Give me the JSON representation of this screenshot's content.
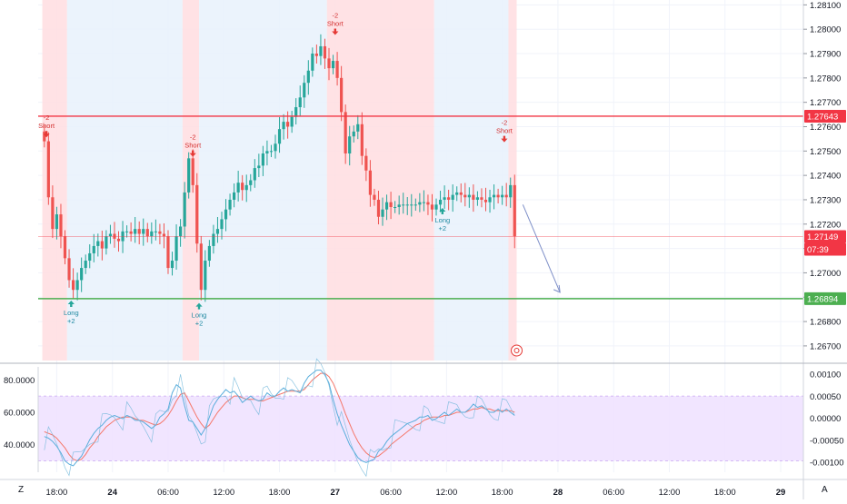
{
  "chart_data": {
    "type": "candlestick",
    "main": {
      "ylim": [
        1.2664,
        1.2812
      ],
      "y_ticks": [
        "1.26700",
        "1.26800",
        "1.26900",
        "1.27000",
        "1.27100",
        "1.27200",
        "1.27300",
        "1.27400",
        "1.27500",
        "1.27600",
        "1.27700",
        "1.27800",
        "1.27900",
        "1.28000",
        "1.28100"
      ],
      "price_lines": [
        {
          "value": 1.27643,
          "label": "1.27643",
          "color": "#f23645"
        },
        {
          "value": 1.26894,
          "label": "1.26894",
          "color": "#4caf50"
        }
      ],
      "last_price": {
        "value": 1.27149,
        "label": "1.27149",
        "countdown": "07:39",
        "color": "#f23645"
      },
      "sessions": [
        {
          "from": 0,
          "to": 6,
          "kind": "short"
        },
        {
          "from": 6,
          "to": 34,
          "kind": "long"
        },
        {
          "from": 34,
          "to": 38,
          "kind": "short"
        },
        {
          "from": 38,
          "to": 69,
          "kind": "long"
        },
        {
          "from": 69,
          "to": 95,
          "kind": "short"
        },
        {
          "from": 95,
          "to": 113,
          "kind": "long"
        },
        {
          "from": 113,
          "to": 115,
          "kind": "short"
        }
      ],
      "signals": [
        {
          "x": 0.5,
          "y": 1.2756,
          "side": "short",
          "lines": [
            "-2",
            "Short"
          ]
        },
        {
          "x": 6.5,
          "y": 1.2689,
          "side": "long",
          "lines": [
            "Long",
            "+2"
          ]
        },
        {
          "x": 36.0,
          "y": 1.2748,
          "side": "short",
          "lines": [
            "-2",
            "Short"
          ]
        },
        {
          "x": 37.5,
          "y": 1.2688,
          "side": "long",
          "lines": [
            "Long",
            "+2"
          ]
        },
        {
          "x": 70.5,
          "y": 1.2798,
          "side": "short",
          "lines": [
            "-2",
            "Short"
          ]
        },
        {
          "x": 96.5,
          "y": 1.2727,
          "side": "long",
          "lines": [
            "Long",
            "+2"
          ]
        },
        {
          "x": 111.5,
          "y": 1.2754,
          "side": "short",
          "lines": [
            "-2",
            "Short"
          ]
        }
      ],
      "closes": [
        1.2754,
        1.2731,
        1.2718,
        1.2724,
        1.2715,
        1.2706,
        1.2697,
        1.2693,
        1.2697,
        1.2702,
        1.2705,
        1.2708,
        1.2711,
        1.2713,
        1.271,
        1.2715,
        1.2716,
        1.2714,
        1.2713,
        1.2717,
        1.2717,
        1.2716,
        1.2718,
        1.2716,
        1.2718,
        1.2715,
        1.2717,
        1.2717,
        1.2716,
        1.2715,
        1.2702,
        1.2705,
        1.2715,
        1.2719,
        1.2733,
        1.2747,
        1.2736,
        1.2712,
        1.2693,
        1.2705,
        1.2711,
        1.2716,
        1.2718,
        1.2722,
        1.2726,
        1.273,
        1.2733,
        1.2737,
        1.2734,
        1.2736,
        1.2738,
        1.2743,
        1.2744,
        1.2749,
        1.275,
        1.275,
        1.2753,
        1.2759,
        1.2762,
        1.276,
        1.2764,
        1.2768,
        1.2772,
        1.2778,
        1.2783,
        1.279,
        1.2789,
        1.2793,
        1.2788,
        1.2784,
        1.2787,
        1.278,
        1.2766,
        1.2749,
        1.2756,
        1.2758,
        1.2761,
        1.2748,
        1.2742,
        1.2732,
        1.273,
        1.2723,
        1.2726,
        1.2729,
        1.2727,
        1.2727,
        1.2728,
        1.2728,
        1.2728,
        1.2728,
        1.2728,
        1.2729,
        1.2729,
        1.2728,
        1.2726,
        1.2728,
        1.273,
        1.2731,
        1.273,
        1.2732,
        1.2733,
        1.2732,
        1.2731,
        1.2732,
        1.273,
        1.2731,
        1.273,
        1.2729,
        1.2731,
        1.2732,
        1.2731,
        1.2732,
        1.2731,
        1.2736,
        1.2715
      ],
      "bull_color": "#26a69a",
      "bear_color": "#ef5350"
    },
    "indicator": {
      "left_ticks": [
        "80.0000",
        "60.0000",
        "40.0000"
      ],
      "right_ticks": [
        "0.00100",
        "0.00050",
        "0.00000",
        "-0.00050",
        "-0.00100"
      ],
      "band": [
        30,
        70
      ],
      "left_range": [
        23,
        88
      ],
      "fast_series": [
        45,
        44,
        42,
        39,
        35,
        30,
        28,
        27,
        30,
        33,
        38,
        43,
        47,
        50,
        52,
        55,
        57,
        58,
        57,
        56,
        58,
        57,
        55,
        55,
        54,
        52,
        50,
        52,
        57,
        59,
        62,
        72,
        77,
        75,
        64,
        55,
        54,
        50,
        46,
        50,
        57,
        64,
        68,
        71,
        74,
        72,
        73,
        70,
        66,
        68,
        70,
        68,
        67,
        68,
        72,
        70,
        70,
        73,
        75,
        73,
        74,
        73,
        72,
        78,
        82,
        84,
        86,
        86,
        83,
        78,
        68,
        59,
        52,
        46,
        40,
        36,
        32,
        30,
        29,
        30,
        31,
        36,
        38,
        42,
        45,
        47,
        49,
        51,
        53,
        54,
        55,
        57,
        57,
        58,
        55,
        56,
        58,
        60,
        58,
        60,
        62,
        60,
        60,
        62,
        65,
        63,
        64,
        62,
        60,
        60,
        62,
        60,
        62,
        60,
        58
      ],
      "slow_series": [
        48,
        47,
        46,
        44,
        41,
        38,
        34,
        31,
        30,
        31,
        34,
        38,
        41,
        45,
        48,
        51,
        53,
        55,
        56,
        57,
        57,
        57,
        56,
        55,
        55,
        54,
        53,
        52,
        53,
        55,
        58,
        62,
        67,
        71,
        72,
        67,
        62,
        57,
        53,
        50,
        52,
        56,
        60,
        63,
        66,
        68,
        70,
        70,
        69,
        68,
        68,
        68,
        67,
        67,
        68,
        69,
        70,
        71,
        72,
        73,
        73,
        73,
        73,
        74,
        77,
        80,
        82,
        84,
        84,
        82,
        78,
        72,
        66,
        59,
        53,
        47,
        42,
        38,
        35,
        33,
        32,
        33,
        35,
        37,
        40,
        42,
        44,
        46,
        48,
        50,
        52,
        53,
        55,
        56,
        57,
        57,
        57,
        58,
        58,
        59,
        60,
        60,
        60,
        61,
        62,
        62,
        63,
        62,
        62,
        61,
        61,
        61,
        61,
        61,
        60
      ]
    },
    "x_tick_labels": [
      "18:00",
      "24",
      "06:00",
      "12:00",
      "18:00",
      "27",
      "06:00",
      "12:00",
      "18:00",
      "28",
      "06:00",
      "12:00",
      "18:00",
      "29"
    ],
    "x_tick_positions": [
      3,
      16.5,
      30,
      43.5,
      57,
      70.5,
      84,
      97.5,
      111,
      124.5,
      138,
      151.5,
      165,
      178.5
    ],
    "x_range": [
      -1.5,
      184
    ],
    "colors": {
      "short_zone": "#ffdde1",
      "long_zone": "#e8f1fc",
      "band_fill": "#f0e2ff",
      "fast_line": "#5aaedc",
      "slow_line": "#f5776a",
      "projection": "#7e8fc8"
    }
  },
  "corner": {
    "left": "Z",
    "right": "A"
  }
}
